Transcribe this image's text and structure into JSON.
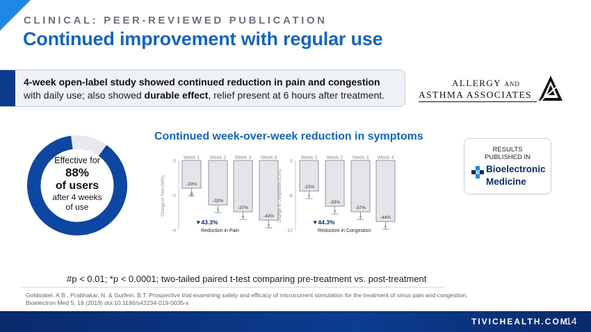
{
  "header": {
    "eyebrow": "CLINICAL: PEER-REVIEWED PUBLICATION",
    "title": "Continued improvement with regular use"
  },
  "callout": {
    "line1": "4-week open-label study showed continued reduction in pain and congestion",
    "line2_pre": "with daily use; also showed ",
    "line2_bold": "durable effect",
    "line2_post": ", relief present at 6 hours after treatment."
  },
  "logo": {
    "line1": "ALLERGY",
    "line1_small": "AND",
    "line2": "ASTHMA ASSOCIATES"
  },
  "donut": {
    "line1": "Effective for",
    "percent": "88%",
    "line2": "of users",
    "line3": "after 4 weeks",
    "line4": "of use",
    "value": 0.88,
    "fill_color": "#0d47a1",
    "rest_color": "#e6e9ee"
  },
  "chart_title": "Continued week-over-week reduction in symptoms",
  "chart_data": [
    {
      "type": "bar",
      "categories": [
        "Week 1",
        "Week 2",
        "Week 3",
        "Week 4"
      ],
      "values": [
        -20,
        -32,
        -37,
        -43
      ],
      "value_labels": [
        "-20%",
        "-32%",
        "-37%",
        "-43%"
      ],
      "markers": [
        "#",
        "*",
        "*",
        "*"
      ],
      "ylabel": "Change in Pain (NRS)",
      "yticks": [
        "0",
        "-2",
        "-4"
      ],
      "ylim": [
        -4,
        0
      ],
      "summary_value": "43.3%",
      "summary_label": "Reduction in Pain"
    },
    {
      "type": "bar",
      "categories": [
        "Week 1",
        "Week 2",
        "Week 3",
        "Week 4"
      ],
      "values": [
        -22,
        -33,
        -37,
        -44
      ],
      "value_labels": [
        "-22%",
        "-33%",
        "-37%",
        "-44%"
      ],
      "markers": [
        "*",
        "*",
        "*",
        "*"
      ],
      "ylabel": "Change in Congestion (CSS)",
      "yticks": [
        "0",
        "-6",
        "-12"
      ],
      "ylim": [
        -12,
        0
      ],
      "summary_value": "44.3%",
      "summary_label": "Reduction in Congestion"
    }
  ],
  "results": {
    "label1": "RESULTS",
    "label2": "PUBLISHED IN",
    "journal1": "Bioelectronic",
    "journal2": "Medicine"
  },
  "footnote": "#p < 0.01; *p < 0.0001; two-tailed paired t-test comparing pre-treatment vs. post-treatment",
  "reference": {
    "line1": "Goldsobel, A.B., Prabhakar, N. & Gurfein, B.T. Prospective trial examining safety and efficacy of microcurrent stimulation for the treatment of sinus pain and congestion.",
    "line2": "Bioelectron Med 5, 18 (2019) doi:10.1186/s42234-019-0035-x"
  },
  "footer": {
    "site": "TIVICHEALTH.COM",
    "page": "14"
  },
  "colors": {
    "accent": "#1565c0",
    "navy": "#0d3b8c",
    "bar_fill": "#e3e5e8",
    "bar_stroke": "#7a7f87"
  }
}
